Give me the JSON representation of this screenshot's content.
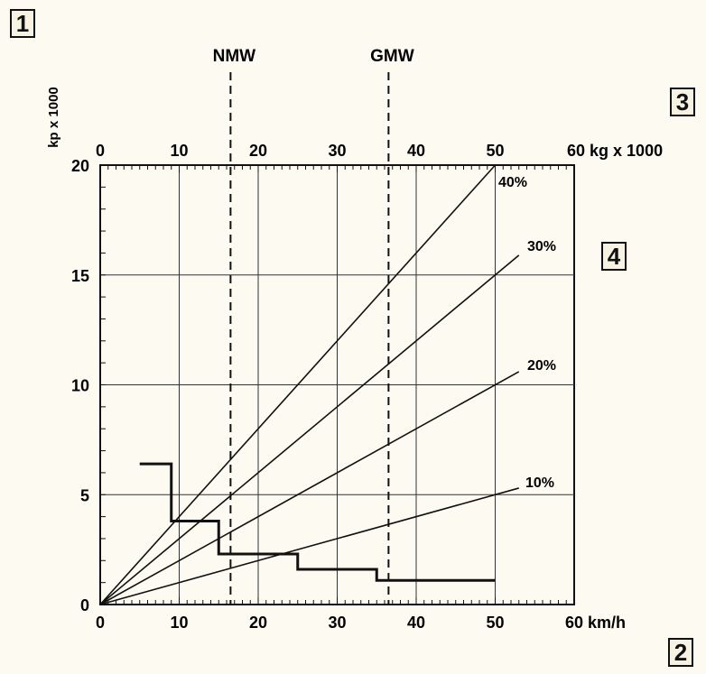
{
  "panel_labels": [
    "1",
    "2",
    "3",
    "4"
  ],
  "chart_data": {
    "type": "line",
    "ylabel": "kp x 1000",
    "x_bottom": {
      "label": "km/h",
      "range": [
        0,
        60
      ],
      "ticks": [
        "0",
        "10",
        "20",
        "30",
        "40",
        "50",
        "60 km/h"
      ]
    },
    "x_top": {
      "label": "kg x 1000",
      "range": [
        0,
        60
      ],
      "ticks": [
        "0",
        "10",
        "20",
        "30",
        "40",
        "50",
        "60 kg x 1000"
      ]
    },
    "y": {
      "range": [
        0,
        20
      ],
      "ticks": [
        "0",
        "5",
        "10",
        "15",
        "20"
      ]
    },
    "grid": true,
    "markers": [
      {
        "name": "NMW",
        "x": 16.5
      },
      {
        "name": "GMW",
        "x": 36.5
      }
    ],
    "series": [
      {
        "name": "40%",
        "x": [
          0,
          50
        ],
        "y": [
          0,
          20
        ]
      },
      {
        "name": "30%",
        "x": [
          0,
          53
        ],
        "y": [
          0,
          15.9
        ]
      },
      {
        "name": "20%",
        "x": [
          0,
          53
        ],
        "y": [
          0,
          10.6
        ]
      },
      {
        "name": "10%",
        "x": [
          0,
          53
        ],
        "y": [
          0,
          5.3
        ]
      }
    ],
    "step_curve": {
      "x": [
        5,
        9,
        9,
        15,
        15,
        25,
        25,
        35,
        35,
        50
      ],
      "y": [
        6.4,
        6.4,
        3.8,
        3.8,
        2.3,
        2.3,
        1.6,
        1.6,
        1.1,
        1.1
      ]
    }
  }
}
